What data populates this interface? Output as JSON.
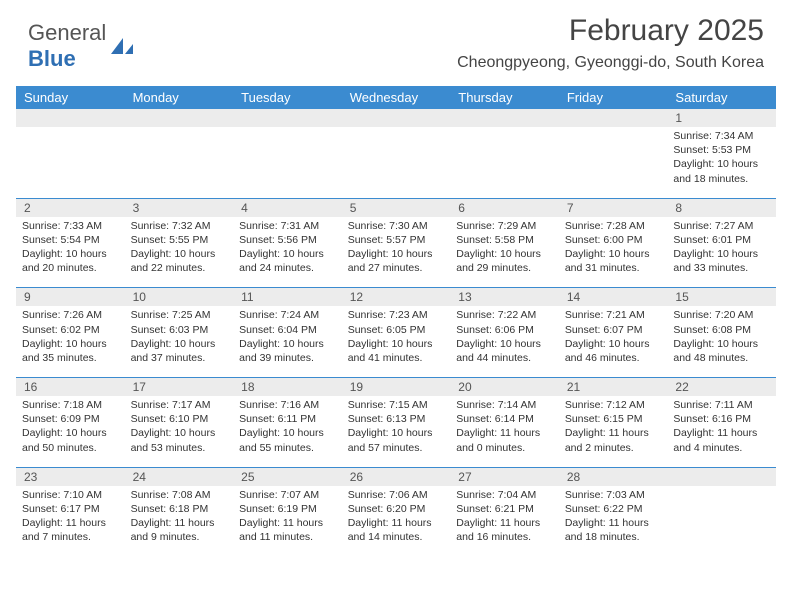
{
  "logo": {
    "text_a": "General",
    "text_b": "Blue"
  },
  "title": "February 2025",
  "location": "Cheongpyeong, Gyeonggi-do, South Korea",
  "colors": {
    "header_bar": "#3b8bd0",
    "header_text": "#ffffff",
    "numrow_bg": "#ececec",
    "rule": "#3b8bd0",
    "body_text": "#333333",
    "title_text": "#444444",
    "logo_gray": "#555555",
    "logo_blue": "#2f6fb3",
    "background": "#ffffff"
  },
  "typography": {
    "month_fontsize": 30,
    "loc_fontsize": 16,
    "dayhead_fontsize": 13,
    "daynum_fontsize": 12,
    "detail_fontsize": 10.5,
    "family": "Arial"
  },
  "day_names": [
    "Sunday",
    "Monday",
    "Tuesday",
    "Wednesday",
    "Thursday",
    "Friday",
    "Saturday"
  ],
  "weeks": [
    [
      null,
      null,
      null,
      null,
      null,
      null,
      {
        "n": "1",
        "sr": "7:34 AM",
        "ss": "5:53 PM",
        "dl": "10 hours and 18 minutes."
      }
    ],
    [
      {
        "n": "2",
        "sr": "7:33 AM",
        "ss": "5:54 PM",
        "dl": "10 hours and 20 minutes."
      },
      {
        "n": "3",
        "sr": "7:32 AM",
        "ss": "5:55 PM",
        "dl": "10 hours and 22 minutes."
      },
      {
        "n": "4",
        "sr": "7:31 AM",
        "ss": "5:56 PM",
        "dl": "10 hours and 24 minutes."
      },
      {
        "n": "5",
        "sr": "7:30 AM",
        "ss": "5:57 PM",
        "dl": "10 hours and 27 minutes."
      },
      {
        "n": "6",
        "sr": "7:29 AM",
        "ss": "5:58 PM",
        "dl": "10 hours and 29 minutes."
      },
      {
        "n": "7",
        "sr": "7:28 AM",
        "ss": "6:00 PM",
        "dl": "10 hours and 31 minutes."
      },
      {
        "n": "8",
        "sr": "7:27 AM",
        "ss": "6:01 PM",
        "dl": "10 hours and 33 minutes."
      }
    ],
    [
      {
        "n": "9",
        "sr": "7:26 AM",
        "ss": "6:02 PM",
        "dl": "10 hours and 35 minutes."
      },
      {
        "n": "10",
        "sr": "7:25 AM",
        "ss": "6:03 PM",
        "dl": "10 hours and 37 minutes."
      },
      {
        "n": "11",
        "sr": "7:24 AM",
        "ss": "6:04 PM",
        "dl": "10 hours and 39 minutes."
      },
      {
        "n": "12",
        "sr": "7:23 AM",
        "ss": "6:05 PM",
        "dl": "10 hours and 41 minutes."
      },
      {
        "n": "13",
        "sr": "7:22 AM",
        "ss": "6:06 PM",
        "dl": "10 hours and 44 minutes."
      },
      {
        "n": "14",
        "sr": "7:21 AM",
        "ss": "6:07 PM",
        "dl": "10 hours and 46 minutes."
      },
      {
        "n": "15",
        "sr": "7:20 AM",
        "ss": "6:08 PM",
        "dl": "10 hours and 48 minutes."
      }
    ],
    [
      {
        "n": "16",
        "sr": "7:18 AM",
        "ss": "6:09 PM",
        "dl": "10 hours and 50 minutes."
      },
      {
        "n": "17",
        "sr": "7:17 AM",
        "ss": "6:10 PM",
        "dl": "10 hours and 53 minutes."
      },
      {
        "n": "18",
        "sr": "7:16 AM",
        "ss": "6:11 PM",
        "dl": "10 hours and 55 minutes."
      },
      {
        "n": "19",
        "sr": "7:15 AM",
        "ss": "6:13 PM",
        "dl": "10 hours and 57 minutes."
      },
      {
        "n": "20",
        "sr": "7:14 AM",
        "ss": "6:14 PM",
        "dl": "11 hours and 0 minutes."
      },
      {
        "n": "21",
        "sr": "7:12 AM",
        "ss": "6:15 PM",
        "dl": "11 hours and 2 minutes."
      },
      {
        "n": "22",
        "sr": "7:11 AM",
        "ss": "6:16 PM",
        "dl": "11 hours and 4 minutes."
      }
    ],
    [
      {
        "n": "23",
        "sr": "7:10 AM",
        "ss": "6:17 PM",
        "dl": "11 hours and 7 minutes."
      },
      {
        "n": "24",
        "sr": "7:08 AM",
        "ss": "6:18 PM",
        "dl": "11 hours and 9 minutes."
      },
      {
        "n": "25",
        "sr": "7:07 AM",
        "ss": "6:19 PM",
        "dl": "11 hours and 11 minutes."
      },
      {
        "n": "26",
        "sr": "7:06 AM",
        "ss": "6:20 PM",
        "dl": "11 hours and 14 minutes."
      },
      {
        "n": "27",
        "sr": "7:04 AM",
        "ss": "6:21 PM",
        "dl": "11 hours and 16 minutes."
      },
      {
        "n": "28",
        "sr": "7:03 AM",
        "ss": "6:22 PM",
        "dl": "11 hours and 18 minutes."
      },
      null
    ]
  ],
  "labels": {
    "sunrise": "Sunrise:",
    "sunset": "Sunset:",
    "daylight": "Daylight:"
  }
}
